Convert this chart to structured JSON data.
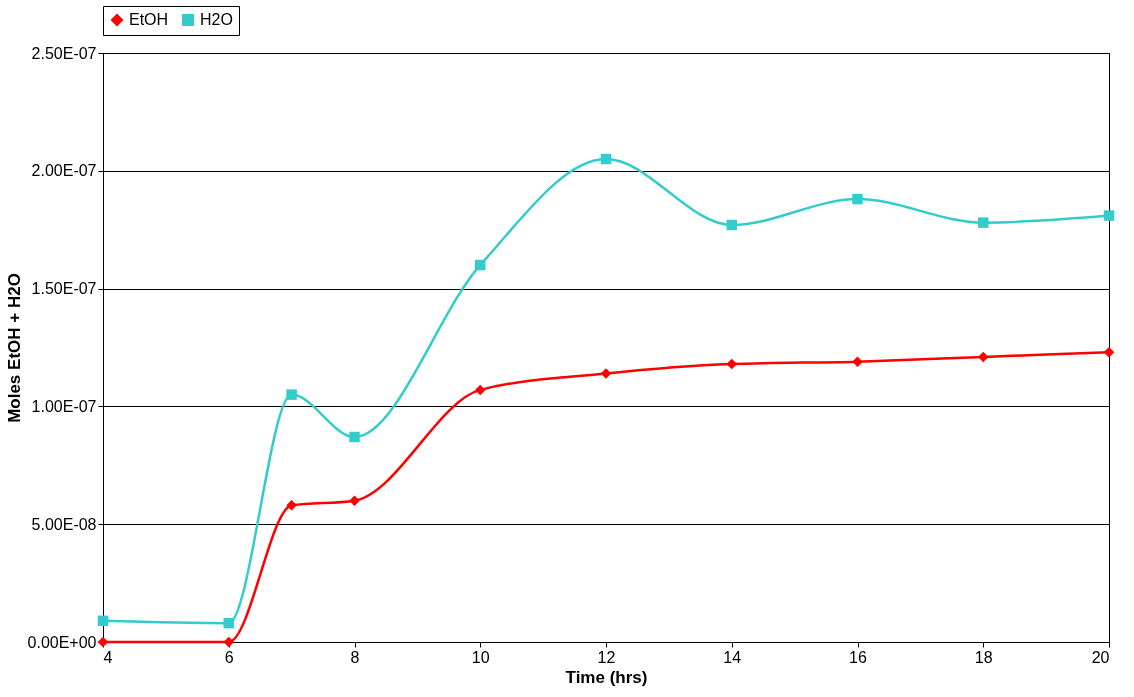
{
  "chart_data": {
    "type": "line",
    "xlabel": "Time (hrs)",
    "ylabel": "Moles EtOH + H2O",
    "x": [
      4,
      6,
      7,
      8,
      10,
      12,
      14,
      16,
      18,
      20
    ],
    "series": [
      {
        "name": "EtOH",
        "color": "#ff0000",
        "marker": "diamond",
        "values": [
          0,
          0,
          5.8e-08,
          6e-08,
          1.07e-07,
          1.14e-07,
          1.18e-07,
          1.19e-07,
          1.21e-07,
          1.23e-07
        ]
      },
      {
        "name": "H2O",
        "color": "#33cccc",
        "marker": "square",
        "values": [
          9e-09,
          8e-09,
          1.05e-07,
          8.7e-08,
          1.6e-07,
          2.05e-07,
          1.77e-07,
          1.88e-07,
          1.78e-07,
          1.81e-07
        ]
      }
    ],
    "xlim": [
      4,
      20
    ],
    "xticks": [
      4,
      6,
      8,
      10,
      12,
      14,
      16,
      18,
      20
    ],
    "ylim": [
      0,
      2.5e-07
    ],
    "yticks": [
      {
        "value": 0,
        "label": "0.00E+00"
      },
      {
        "value": 5e-08,
        "label": "5.00E-08"
      },
      {
        "value": 1e-07,
        "label": "1.00E-07"
      },
      {
        "value": 1.5e-07,
        "label": "1.50E-07"
      },
      {
        "value": 2e-07,
        "label": "2.00E-07"
      },
      {
        "value": 2.5e-07,
        "label": "2.50E-07"
      }
    ],
    "grid": "y",
    "legend": "top",
    "line_style": "solid"
  }
}
